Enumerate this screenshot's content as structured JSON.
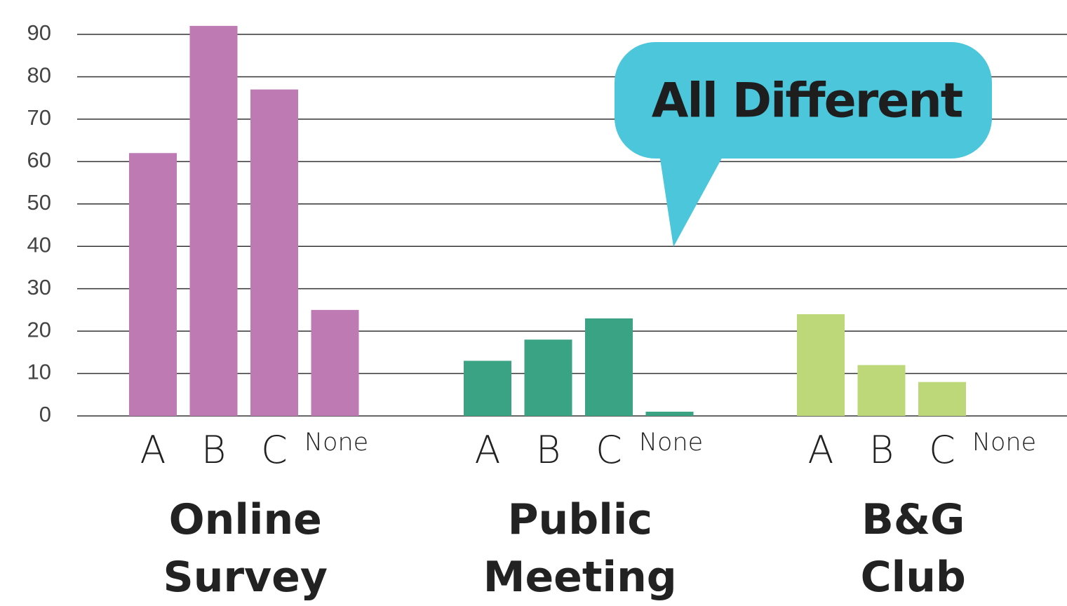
{
  "chart_data": {
    "type": "bar",
    "ylim": [
      0,
      90
    ],
    "yticks": [
      0,
      10,
      20,
      30,
      40,
      50,
      60,
      70,
      80,
      90
    ],
    "grid": true,
    "annotation": "All Different",
    "groups": [
      {
        "name": "Online Survey",
        "color": "#be7bb3",
        "categories": [
          "A",
          "B",
          "C",
          "None"
        ],
        "values": [
          62,
          92,
          77,
          25
        ]
      },
      {
        "name": "Public Meeting",
        "color": "#3aa384",
        "categories": [
          "A",
          "B",
          "C",
          "None"
        ],
        "values": [
          13,
          18,
          23,
          1
        ]
      },
      {
        "name": "B&G Club",
        "color": "#bcd878",
        "categories": [
          "A",
          "B",
          "C",
          "None"
        ],
        "values": [
          24,
          12,
          8,
          0
        ]
      }
    ]
  }
}
